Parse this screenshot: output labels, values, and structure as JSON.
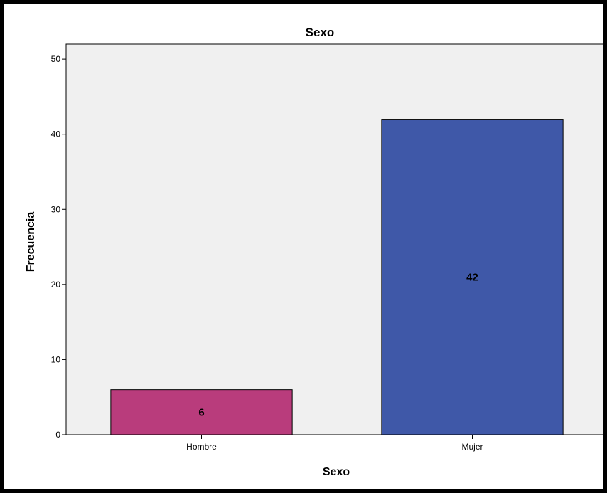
{
  "chart_data": {
    "type": "bar",
    "title": "Sexo",
    "xlabel": "Sexo",
    "ylabel": "Frecuencia",
    "categories": [
      "Hombre",
      "Mujer"
    ],
    "values": [
      6,
      42
    ],
    "data_labels": [
      "6",
      "42"
    ],
    "bar_colors": [
      "#b93c7c",
      "#3f58a8"
    ],
    "ylim": [
      0,
      52
    ],
    "yticks": [
      0,
      10,
      20,
      30,
      40,
      50
    ],
    "grid": false,
    "plot_background": "#f0f0f0"
  }
}
